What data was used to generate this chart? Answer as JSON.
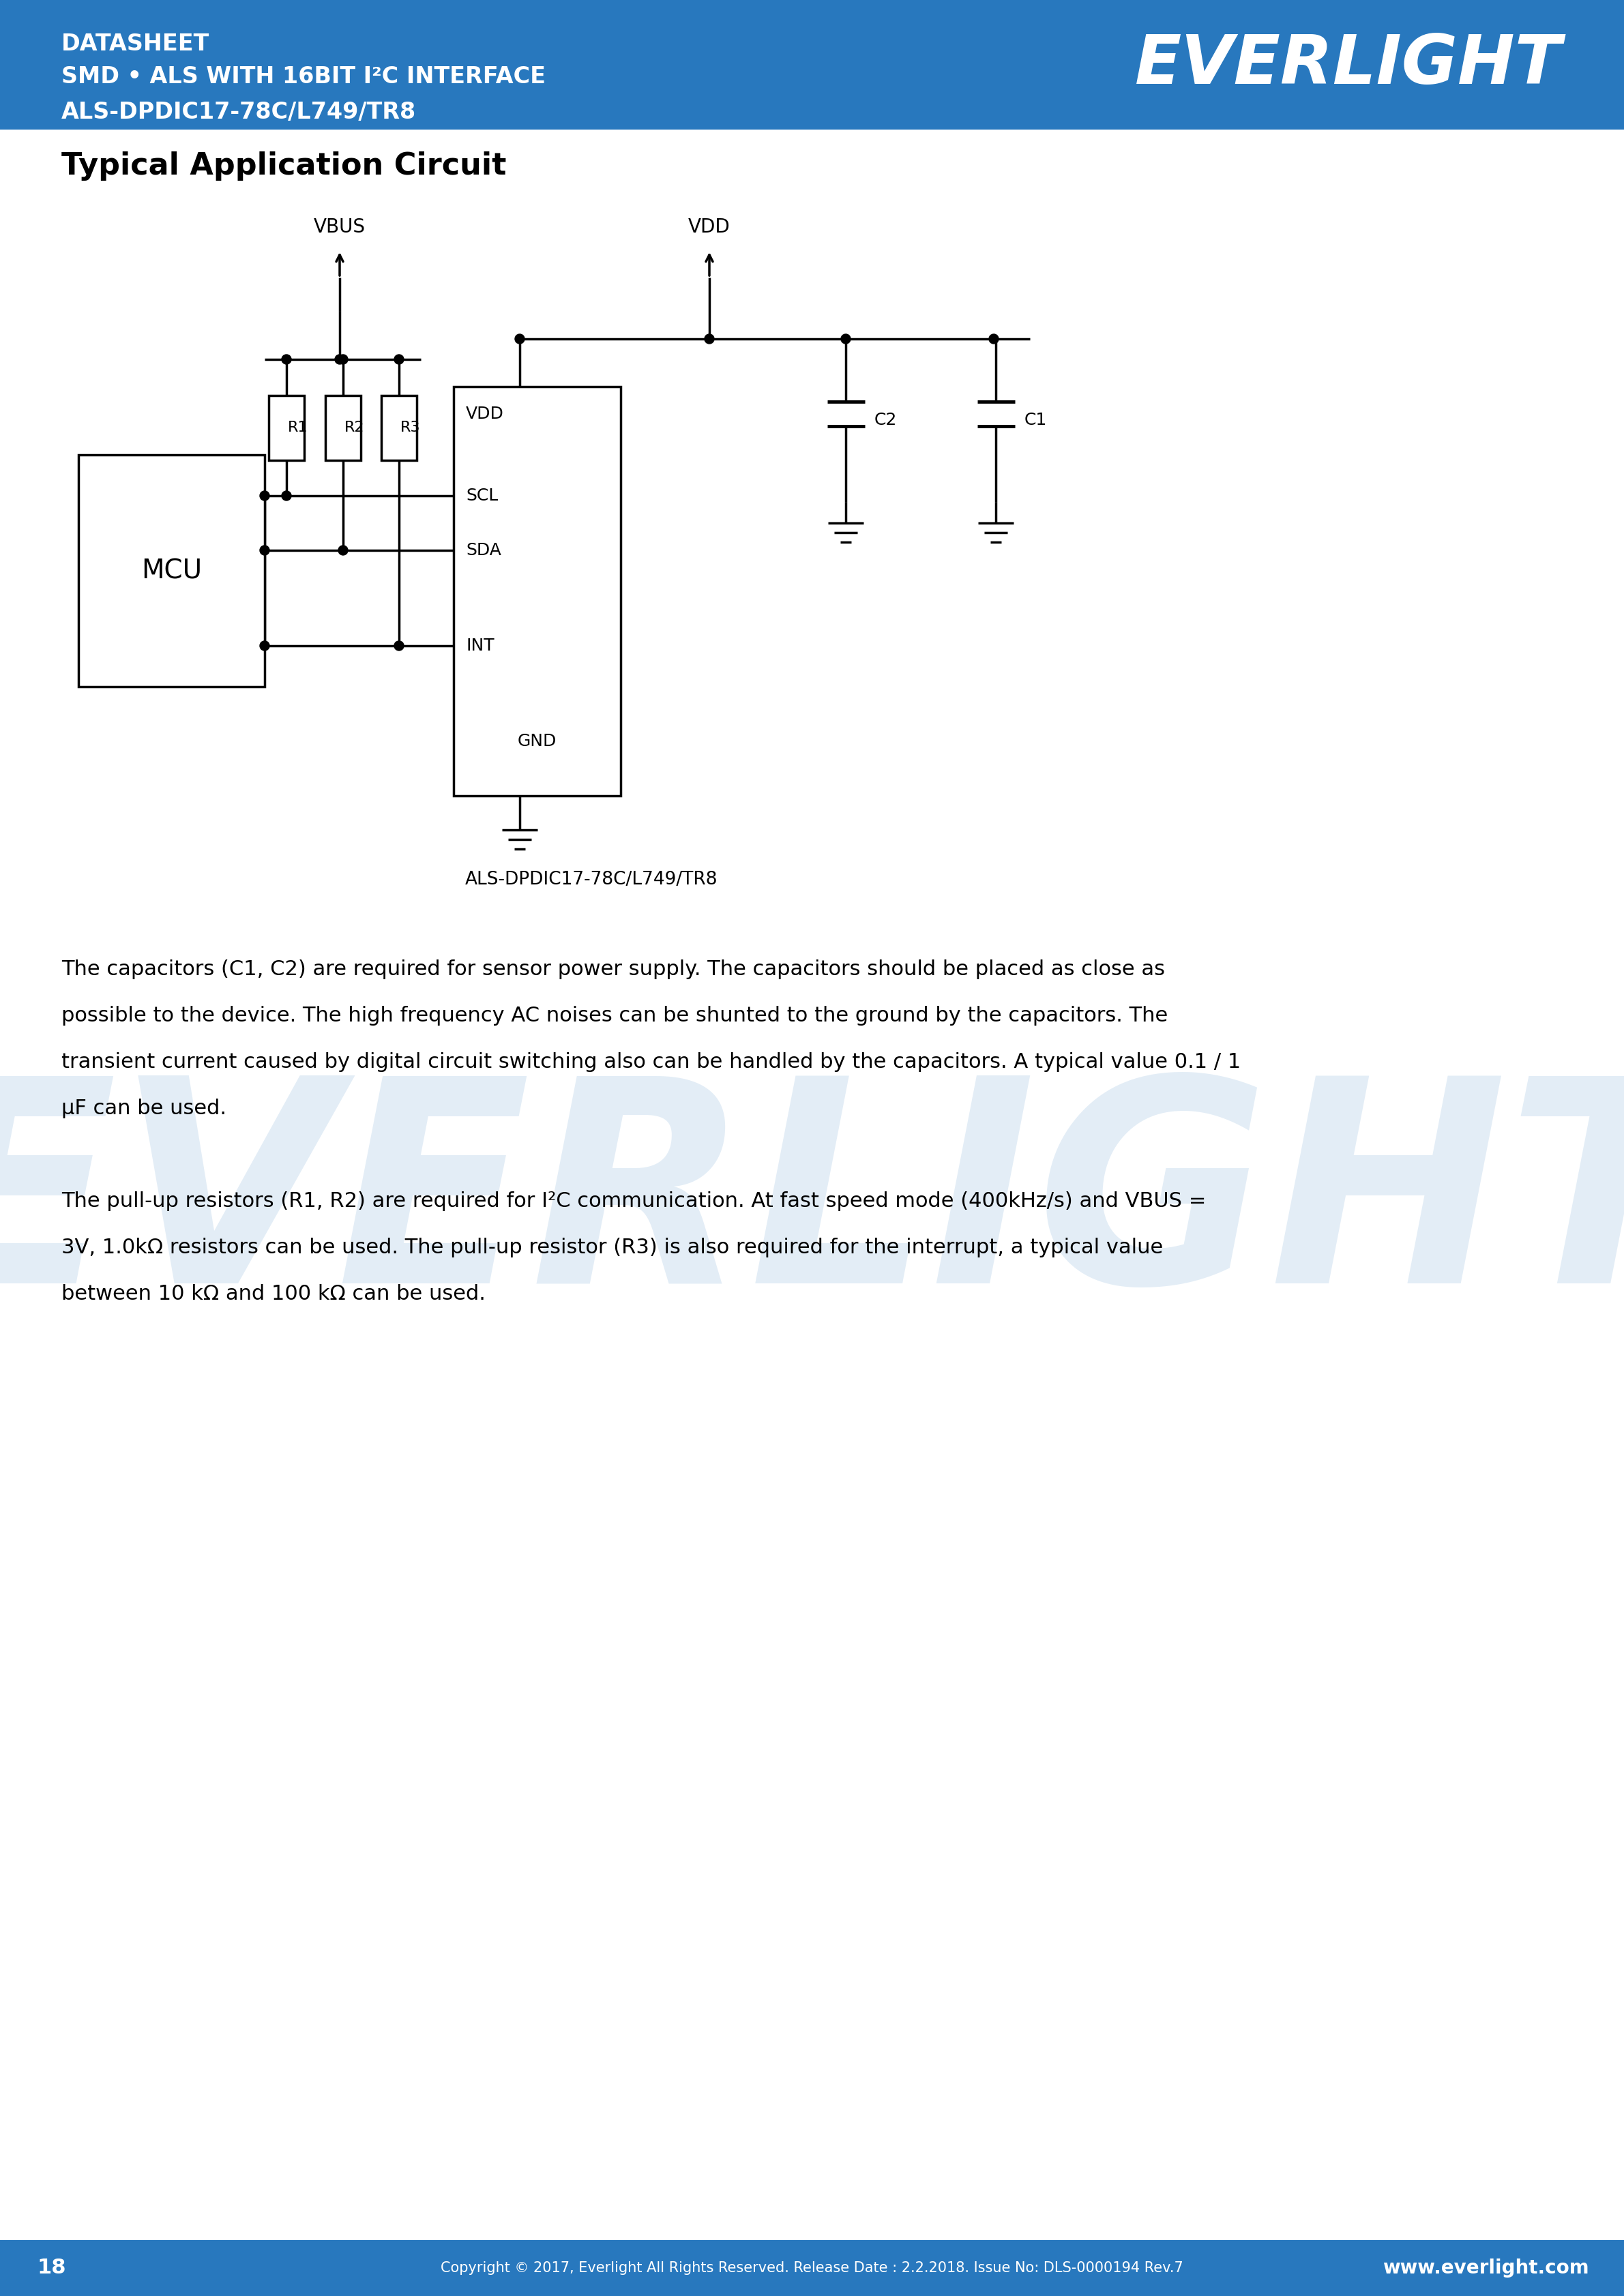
{
  "header_bg_color": "#2878BE",
  "header_text_color": "#FFFFFF",
  "header_line1": "DATASHEET",
  "header_line2": "SMD • ALS WITH 16BIT I²C INTERFACE",
  "header_line3": "ALS-DPDIC17-78C/L749/TR8",
  "brand": "EVERLIGHT",
  "page_bg": "#FFFFFF",
  "section_title": "Typical Application Circuit",
  "footer_bg_color": "#2878BE",
  "footer_text_color": "#FFFFFF",
  "footer_page": "18",
  "footer_copy": "Copyright © 2017, Everlight All Rights Reserved. Release Date : 2.2.2018. Issue No: DLS-0000194 Rev.7",
  "footer_web": "www.everlight.com",
  "circuit_caption": "ALS-DPDIC17-78C/L749/TR8",
  "body_line1": "The capacitors (C1, C2) are required for sensor power supply. The capacitors should be placed as close as",
  "body_line2": "possible to the device. The high frequency AC noises can be shunted to the ground by the capacitors. The",
  "body_line3": "transient current caused by digital circuit switching also can be handled by the capacitors. A typical value 0.1 / 1",
  "body_line4": "μF can be used.",
  "body_line5": "The pull-up resistors (R1, R2) are required for I²C communication. At fast speed mode (400kHz/s) and VBUS =",
  "body_line6": "3V, 1.0kΩ resistors can be used. The pull-up resistor (R3) is also required for the interrupt, a typical value",
  "body_line7": "between 10 kΩ and 100 kΩ can be used.",
  "watermark_color": "#2878BE",
  "watermark_alpha": 0.13
}
